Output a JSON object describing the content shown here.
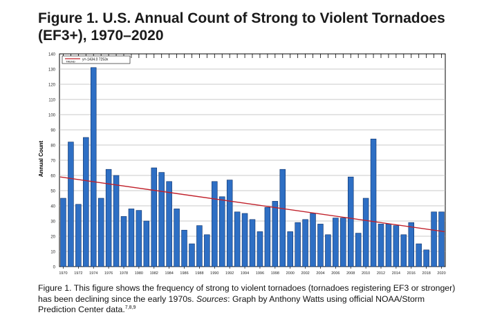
{
  "figure": {
    "title": "Figure 1. U.S. Annual Count of Strong to Violent Tornadoes (EF3+), 1970–2020",
    "caption_prefix": "Figure 1. This figure shows the frequency of strong to violent tornadoes (tornadoes registering EF3 or stronger) has been declining since the early 1970s. ",
    "caption_sources_label": "Sources",
    "caption_sources_text": ": Graph by Anthony Watts using official NOAA/Storm Prediction Center data.",
    "caption_refs": "7,8,9"
  },
  "chart_data": {
    "type": "bar",
    "title": "U.S. Annual Count of Strong to Violent Tornadoes (EF3+), 1970–2020",
    "xlabel": "",
    "ylabel": "Annual Count",
    "ylim": [
      0,
      140
    ],
    "yticks": [
      0,
      10,
      20,
      30,
      40,
      50,
      60,
      70,
      80,
      90,
      100,
      110,
      120,
      130,
      140
    ],
    "xtick_labels": [
      "1970",
      "1972",
      "1974",
      "1976",
      "1978",
      "1980",
      "1982",
      "1984",
      "1986",
      "1988",
      "1990",
      "1992",
      "1994",
      "1996",
      "1998",
      "2000",
      "2002",
      "2004",
      "2006",
      "2008",
      "2010",
      "2012",
      "2014",
      "2016",
      "2018",
      "2020"
    ],
    "grid": true,
    "bar_color": "#2e6fc4",
    "trend_color": "#c0202a",
    "legend": {
      "label": "TREND",
      "equation": "y=-1434.0 7253x",
      "placement": "top-left"
    },
    "categories": [
      1970,
      1971,
      1972,
      1973,
      1974,
      1975,
      1976,
      1977,
      1978,
      1979,
      1980,
      1981,
      1982,
      1983,
      1984,
      1985,
      1986,
      1987,
      1988,
      1989,
      1990,
      1991,
      1992,
      1993,
      1994,
      1995,
      1996,
      1997,
      1998,
      1999,
      2000,
      2001,
      2002,
      2003,
      2004,
      2005,
      2006,
      2007,
      2008,
      2009,
      2010,
      2011,
      2012,
      2013,
      2014,
      2015,
      2016,
      2017,
      2018,
      2019,
      2020
    ],
    "values": [
      45,
      82,
      41,
      85,
      131,
      45,
      64,
      60,
      33,
      38,
      37,
      30,
      65,
      62,
      56,
      38,
      24,
      15,
      27,
      21,
      56,
      46,
      57,
      36,
      35,
      31,
      23,
      39,
      43,
      64,
      23,
      29,
      31,
      35,
      28,
      21,
      32,
      32,
      59,
      22,
      45,
      84,
      28,
      28,
      27,
      21,
      29,
      15,
      11,
      36,
      36
    ],
    "trend": {
      "start": [
        1970,
        59
      ],
      "end": [
        2020,
        23
      ]
    }
  }
}
